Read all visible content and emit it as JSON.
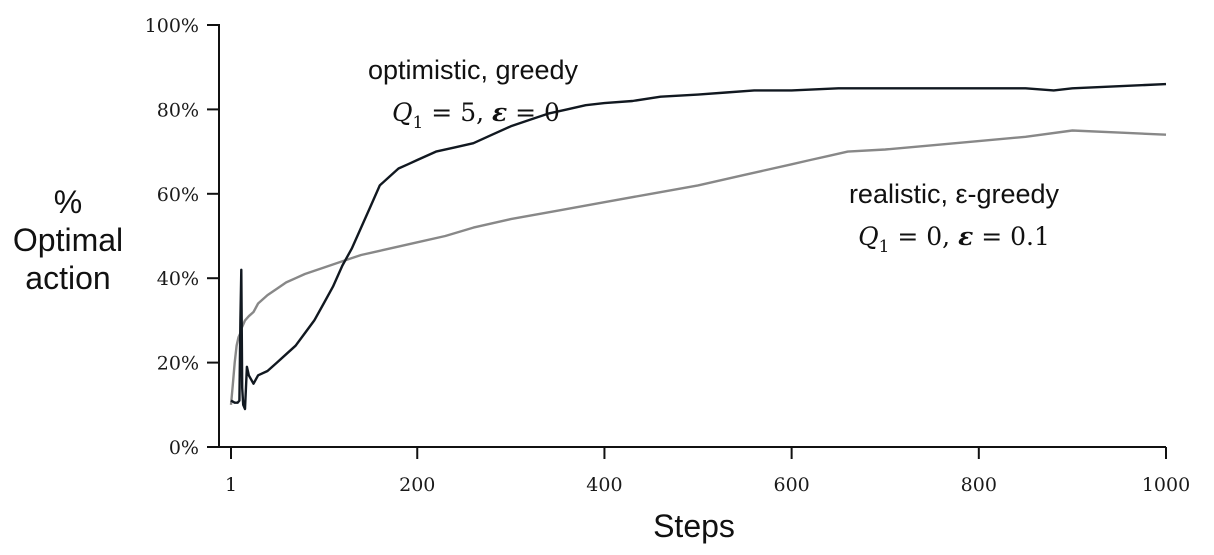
{
  "chart_data": {
    "type": "line",
    "xlabel": "Steps",
    "ylabel_lines": [
      "%",
      "Optimal",
      "action"
    ],
    "xlim": [
      1,
      1000
    ],
    "ylim": [
      0,
      100
    ],
    "xticks": [
      {
        "value": 1,
        "label": "1"
      },
      {
        "value": 200,
        "label": "200"
      },
      {
        "value": 400,
        "label": "400"
      },
      {
        "value": 600,
        "label": "600"
      },
      {
        "value": 800,
        "label": "800"
      },
      {
        "value": 1000,
        "label": "1000"
      }
    ],
    "yticks": [
      {
        "value": 0,
        "label": "0%"
      },
      {
        "value": 20,
        "label": "20%"
      },
      {
        "value": 40,
        "label": "40%"
      },
      {
        "value": 60,
        "label": "60%"
      },
      {
        "value": 80,
        "label": "80%"
      },
      {
        "value": 100,
        "label": "100%"
      }
    ],
    "grid": false,
    "legend": "none",
    "series": [
      {
        "color": "#111820",
        "x": [
          1,
          5,
          8,
          10,
          11,
          12,
          13,
          14,
          16,
          18,
          20,
          25,
          30,
          40,
          50,
          60,
          70,
          80,
          90,
          100,
          110,
          120,
          130,
          140,
          150,
          160,
          170,
          180,
          190,
          200,
          220,
          240,
          260,
          280,
          300,
          320,
          340,
          360,
          380,
          400,
          430,
          460,
          500,
          530,
          560,
          600,
          650,
          700,
          750,
          800,
          850,
          880,
          900,
          950,
          1000
        ],
        "y": [
          11,
          10.5,
          10.5,
          11,
          30,
          42,
          14,
          10,
          9,
          19,
          17,
          15,
          17,
          18,
          20,
          22,
          24,
          27,
          30,
          34,
          38,
          43,
          47,
          52,
          57,
          62,
          64,
          66,
          67,
          68,
          70,
          71,
          72,
          74,
          76,
          77.5,
          79,
          80,
          81,
          81.5,
          82,
          83,
          83.5,
          84,
          84.5,
          84.5,
          85,
          85,
          85,
          85,
          85,
          84.5,
          85,
          85.5,
          86
        ]
      },
      {
        "color": "#888888",
        "x": [
          1,
          3,
          5,
          7,
          9,
          11,
          12,
          14,
          16,
          20,
          25,
          30,
          40,
          50,
          60,
          70,
          80,
          100,
          120,
          140,
          160,
          180,
          200,
          230,
          260,
          300,
          350,
          400,
          450,
          500,
          550,
          600,
          620,
          640,
          660,
          700,
          750,
          800,
          850,
          900,
          950,
          1000
        ],
        "y": [
          10,
          15,
          20,
          24,
          26,
          27,
          28,
          29,
          30,
          31,
          32,
          34,
          36,
          37.5,
          39,
          40,
          41,
          42.5,
          44,
          45.5,
          46.5,
          47.5,
          48.5,
          50,
          52,
          54,
          56,
          58,
          60,
          62,
          64.5,
          67,
          68,
          69,
          70,
          70.5,
          71.5,
          72.5,
          73.5,
          75,
          74.5,
          74
        ]
      }
    ],
    "annotations": [
      {
        "text": "optimistic, greedy",
        "math": {
          "q": "Q",
          "sub": "1",
          "rest": " = 5,  ",
          "eps": "ε",
          "tail": " = 0"
        }
      },
      {
        "text": "realistic, ε-greedy",
        "math": {
          "q": "Q",
          "sub": "1",
          "rest": " = 0,  ",
          "eps": "ε",
          "tail": " = 0.1"
        }
      }
    ]
  }
}
